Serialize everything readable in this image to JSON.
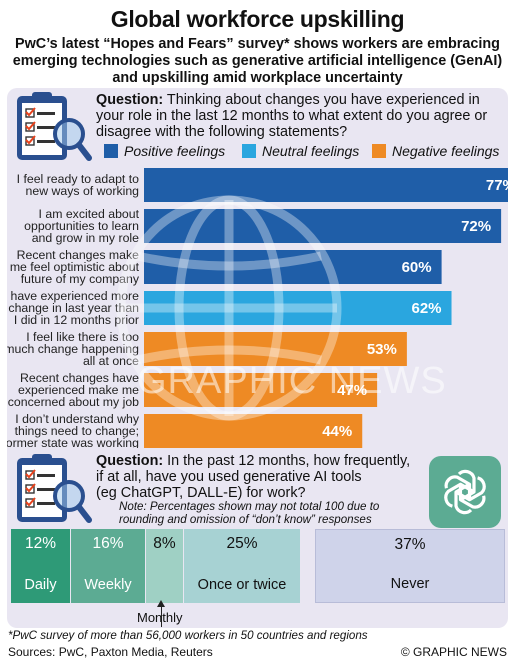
{
  "header": {
    "title": "Global workforce upskilling",
    "subtitle": "PwC’s latest “Hopes and Fears” survey* shows workers are embracing emerging technologies such as generative artificial intelligence (GenAI) and upskilling amid workplace uncertainty"
  },
  "question1": {
    "label": "Question:",
    "text": "Thinking about changes you have experienced in your role in the last 12 months to what extent do you agree or disagree with the following statements?"
  },
  "legend": [
    {
      "label": "Positive feelings",
      "color": "#1f5ea8"
    },
    {
      "label": "Neutral feelings",
      "color": "#2aa6df"
    },
    {
      "label": "Negative feelings",
      "color": "#ee8a24"
    }
  ],
  "watermark": "GRAPHIC NEWS",
  "chart_data": {
    "type": "bar",
    "orientation": "horizontal",
    "xlim": [
      0,
      100
    ],
    "categories": [
      [
        "I feel ready to adapt to",
        "new ways of working"
      ],
      [
        "I am excited about",
        "opportunities to learn",
        "and grow in my role"
      ],
      [
        "Recent changes make",
        "me feel optimistic about",
        "future of my company"
      ],
      [
        "I have experienced more",
        "change in last year than",
        "I did in 12 months prior"
      ],
      [
        "I feel like there is too",
        "much change happening",
        "all at once"
      ],
      [
        "Recent changes have",
        "experienced make me",
        "concerned about my job"
      ],
      [
        "I don’t understand why",
        "things need to change;",
        "former state was working"
      ]
    ],
    "values": [
      77,
      72,
      60,
      62,
      53,
      47,
      44
    ],
    "value_labels": [
      "77%",
      "72%",
      "60%",
      "62%",
      "53%",
      "47%",
      "44%"
    ],
    "sentiment": [
      "positive",
      "positive",
      "positive",
      "neutral",
      "negative",
      "negative",
      "negative"
    ]
  },
  "question2": {
    "label": "Question:",
    "text_line1": "In the past 12 months, how frequently,",
    "text_line2": "if at all, have you used generative AI tools",
    "text_line3": "(eg ChatGPT, DALL-E) for work?",
    "note": "Note: Percentages shown may not total 100 due to rounding and omission of “don’t know” responses"
  },
  "usage": [
    {
      "pct": "12%",
      "label": "Daily",
      "value": 12,
      "color": "#2e9a77",
      "text_color": "#ffffff"
    },
    {
      "pct": "16%",
      "label": "Weekly",
      "value": 16,
      "color": "#5cab93",
      "text_color": "#ffffff"
    },
    {
      "pct": "8%",
      "label": "",
      "value": 8,
      "color": "#9fd0c4",
      "text_color": "#111111"
    },
    {
      "pct": "25%",
      "label": "Once or twice",
      "value": 25,
      "color": "#a7d2d3",
      "text_color": "#111111"
    },
    {
      "pct": "37%",
      "label": "Never",
      "value": 37,
      "color": "#cfd3ea",
      "text_color": "#111111"
    }
  ],
  "monthly_label": "Monthly",
  "footer": {
    "footnote": "*PwC survey of more than 56,000 workers in 50 countries and regions",
    "sources": "Sources: PwC, Paxton Media, Reuters",
    "credit": "© GRAPHIC NEWS"
  }
}
